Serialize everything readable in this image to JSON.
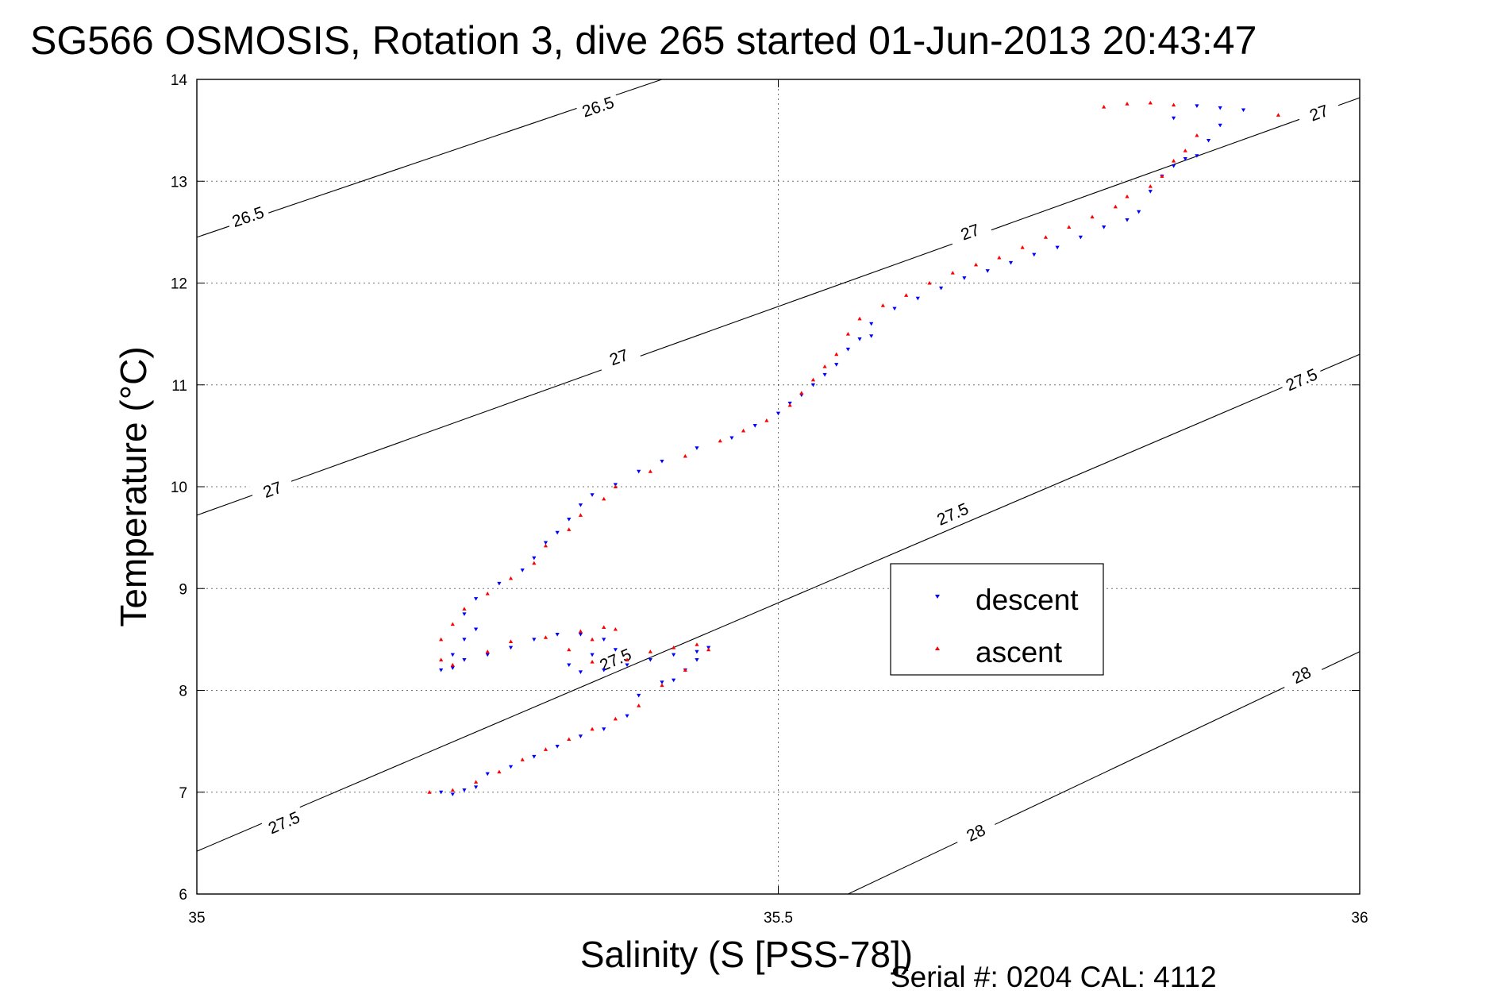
{
  "title": "SG566 OSMOSIS, Rotation 3, dive 265 started 01-Jun-2013 20:43:47",
  "footer": "Serial #: 0204  CAL: 4112",
  "chart_data": {
    "type": "scatter",
    "xlabel": "Salinity (S [PSS-78])",
    "ylabel": "Temperature (°C)",
    "xlim": [
      35,
      36
    ],
    "ylim": [
      6,
      14
    ],
    "xticks": [
      "35",
      "35.5",
      "36"
    ],
    "yticks": [
      "6",
      "7",
      "8",
      "9",
      "10",
      "11",
      "12",
      "13",
      "14"
    ],
    "grid": true,
    "legend_position": "right-middle",
    "colors": {
      "descent": "#0000ff",
      "ascent": "#ff0000"
    },
    "contours": [
      {
        "level": 26.5,
        "points": [
          [
            35,
            12.45
          ],
          [
            35.4,
            14.0
          ]
        ],
        "labels": [
          {
            "text": "26.5",
            "x": 35.044,
            "y": 12.65
          },
          {
            "text": "26.5",
            "x": 35.345,
            "y": 13.73
          }
        ]
      },
      {
        "level": 27.0,
        "points": [
          [
            35,
            9.72
          ],
          [
            36,
            13.82
          ]
        ],
        "labels": [
          {
            "text": "27",
            "x": 35.065,
            "y": 9.97
          },
          {
            "text": "27",
            "x": 35.363,
            "y": 11.27
          },
          {
            "text": "27",
            "x": 35.665,
            "y": 12.5
          },
          {
            "text": "27",
            "x": 35.965,
            "y": 13.67
          }
        ]
      },
      {
        "level": 27.5,
        "points": [
          [
            35,
            6.42
          ],
          [
            36,
            11.3
          ]
        ],
        "labels": [
          {
            "text": "27.5",
            "x": 35.075,
            "y": 6.7
          },
          {
            "text": "27.5",
            "x": 35.36,
            "y": 8.3
          },
          {
            "text": "27.5",
            "x": 35.65,
            "y": 9.73
          },
          {
            "text": "27.5",
            "x": 35.95,
            "y": 11.05
          }
        ]
      },
      {
        "level": 28.0,
        "points": [
          [
            35.56,
            6.0
          ],
          [
            36,
            8.38
          ]
        ],
        "labels": [
          {
            "text": "28",
            "x": 35.67,
            "y": 6.6
          },
          {
            "text": "28",
            "x": 35.95,
            "y": 8.15
          }
        ]
      }
    ],
    "series": [
      {
        "name": "descent",
        "marker": "triangle-down",
        "points": [
          [
            35.21,
            7.0
          ],
          [
            35.22,
            6.98
          ],
          [
            35.23,
            7.02
          ],
          [
            35.24,
            7.05
          ],
          [
            35.25,
            7.18
          ],
          [
            35.27,
            7.25
          ],
          [
            35.29,
            7.35
          ],
          [
            35.31,
            7.45
          ],
          [
            35.33,
            7.55
          ],
          [
            35.35,
            7.62
          ],
          [
            35.37,
            7.75
          ],
          [
            35.38,
            7.95
          ],
          [
            35.4,
            8.08
          ],
          [
            35.41,
            8.1
          ],
          [
            35.42,
            8.2
          ],
          [
            35.43,
            8.3
          ],
          [
            35.44,
            8.42
          ],
          [
            35.43,
            8.38
          ],
          [
            35.41,
            8.35
          ],
          [
            35.39,
            8.3
          ],
          [
            35.37,
            8.25
          ],
          [
            35.35,
            8.2
          ],
          [
            35.33,
            8.18
          ],
          [
            35.32,
            8.25
          ],
          [
            35.34,
            8.35
          ],
          [
            35.36,
            8.4
          ],
          [
            35.35,
            8.5
          ],
          [
            35.33,
            8.55
          ],
          [
            35.31,
            8.55
          ],
          [
            35.29,
            8.5
          ],
          [
            35.27,
            8.42
          ],
          [
            35.25,
            8.35
          ],
          [
            35.23,
            8.3
          ],
          [
            35.22,
            8.22
          ],
          [
            35.21,
            8.2
          ],
          [
            35.22,
            8.35
          ],
          [
            35.23,
            8.5
          ],
          [
            35.24,
            8.6
          ],
          [
            35.23,
            8.75
          ],
          [
            35.24,
            8.9
          ],
          [
            35.26,
            9.05
          ],
          [
            35.28,
            9.18
          ],
          [
            35.29,
            9.3
          ],
          [
            35.3,
            9.45
          ],
          [
            35.31,
            9.55
          ],
          [
            35.32,
            9.68
          ],
          [
            35.33,
            9.82
          ],
          [
            35.34,
            9.92
          ],
          [
            35.36,
            10.02
          ],
          [
            35.38,
            10.15
          ],
          [
            35.4,
            10.25
          ],
          [
            35.43,
            10.38
          ],
          [
            35.46,
            10.48
          ],
          [
            35.48,
            10.6
          ],
          [
            35.5,
            10.72
          ],
          [
            35.51,
            10.82
          ],
          [
            35.52,
            10.9
          ],
          [
            35.53,
            11.0
          ],
          [
            35.54,
            11.1
          ],
          [
            35.55,
            11.2
          ],
          [
            35.56,
            11.35
          ],
          [
            35.57,
            11.45
          ],
          [
            35.58,
            11.48
          ],
          [
            35.58,
            11.6
          ],
          [
            35.6,
            11.75
          ],
          [
            35.62,
            11.85
          ],
          [
            35.64,
            11.95
          ],
          [
            35.66,
            12.05
          ],
          [
            35.68,
            12.12
          ],
          [
            35.7,
            12.2
          ],
          [
            35.72,
            12.28
          ],
          [
            35.74,
            12.35
          ],
          [
            35.76,
            12.45
          ],
          [
            35.78,
            12.55
          ],
          [
            35.8,
            12.62
          ],
          [
            35.81,
            12.7
          ],
          [
            35.82,
            12.9
          ],
          [
            35.83,
            13.05
          ],
          [
            35.84,
            13.15
          ],
          [
            35.85,
            13.22
          ],
          [
            35.86,
            13.25
          ],
          [
            35.87,
            13.4
          ],
          [
            35.88,
            13.55
          ],
          [
            35.9,
            13.7
          ],
          [
            35.88,
            13.72
          ],
          [
            35.86,
            13.74
          ],
          [
            35.84,
            13.62
          ]
        ]
      },
      {
        "name": "ascent",
        "marker": "triangle-up",
        "points": [
          [
            35.2,
            7.0
          ],
          [
            35.22,
            7.02
          ],
          [
            35.24,
            7.1
          ],
          [
            35.26,
            7.2
          ],
          [
            35.28,
            7.32
          ],
          [
            35.3,
            7.42
          ],
          [
            35.32,
            7.52
          ],
          [
            35.34,
            7.62
          ],
          [
            35.36,
            7.72
          ],
          [
            35.38,
            7.85
          ],
          [
            35.4,
            8.05
          ],
          [
            35.42,
            8.2
          ],
          [
            35.44,
            8.4
          ],
          [
            35.43,
            8.45
          ],
          [
            35.41,
            8.42
          ],
          [
            35.39,
            8.38
          ],
          [
            35.37,
            8.3
          ],
          [
            35.34,
            8.28
          ],
          [
            35.32,
            8.4
          ],
          [
            35.34,
            8.5
          ],
          [
            35.36,
            8.6
          ],
          [
            35.35,
            8.62
          ],
          [
            35.33,
            8.58
          ],
          [
            35.3,
            8.52
          ],
          [
            35.27,
            8.48
          ],
          [
            35.25,
            8.38
          ],
          [
            35.22,
            8.25
          ],
          [
            35.21,
            8.3
          ],
          [
            35.21,
            8.5
          ],
          [
            35.22,
            8.65
          ],
          [
            35.23,
            8.8
          ],
          [
            35.25,
            8.95
          ],
          [
            35.27,
            9.1
          ],
          [
            35.29,
            9.25
          ],
          [
            35.3,
            9.42
          ],
          [
            35.32,
            9.58
          ],
          [
            35.33,
            9.72
          ],
          [
            35.35,
            9.88
          ],
          [
            35.36,
            10.0
          ],
          [
            35.39,
            10.15
          ],
          [
            35.42,
            10.3
          ],
          [
            35.45,
            10.45
          ],
          [
            35.47,
            10.55
          ],
          [
            35.49,
            10.65
          ],
          [
            35.51,
            10.8
          ],
          [
            35.52,
            10.92
          ],
          [
            35.53,
            11.05
          ],
          [
            35.54,
            11.18
          ],
          [
            35.55,
            11.3
          ],
          [
            35.56,
            11.5
          ],
          [
            35.57,
            11.65
          ],
          [
            35.59,
            11.78
          ],
          [
            35.61,
            11.88
          ],
          [
            35.63,
            12.0
          ],
          [
            35.65,
            12.1
          ],
          [
            35.67,
            12.18
          ],
          [
            35.69,
            12.25
          ],
          [
            35.71,
            12.35
          ],
          [
            35.73,
            12.45
          ],
          [
            35.75,
            12.55
          ],
          [
            35.77,
            12.65
          ],
          [
            35.79,
            12.75
          ],
          [
            35.8,
            12.85
          ],
          [
            35.82,
            12.95
          ],
          [
            35.83,
            13.05
          ],
          [
            35.84,
            13.2
          ],
          [
            35.85,
            13.3
          ],
          [
            35.86,
            13.45
          ],
          [
            35.84,
            13.75
          ],
          [
            35.82,
            13.77
          ],
          [
            35.8,
            13.76
          ],
          [
            35.78,
            13.73
          ],
          [
            35.93,
            13.65
          ]
        ]
      }
    ]
  }
}
